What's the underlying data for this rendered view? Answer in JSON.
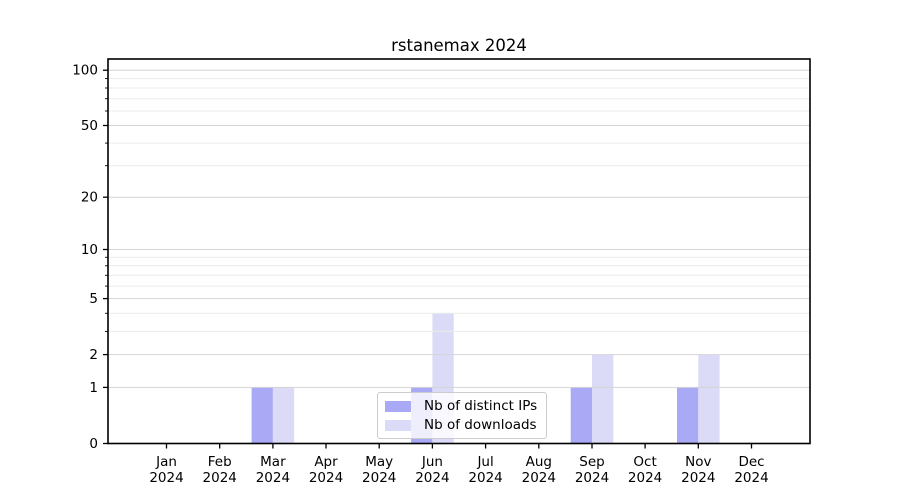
{
  "chart_data": {
    "type": "bar",
    "title": "rstanemax 2024",
    "categories": [
      "Jan",
      "Feb",
      "Mar",
      "Apr",
      "May",
      "Jun",
      "Jul",
      "Aug",
      "Sep",
      "Oct",
      "Nov",
      "Dec"
    ],
    "category_sub_label": "2024",
    "series": [
      {
        "name": "Nb of distinct IPs",
        "color": "#a9a9f5",
        "values": [
          0,
          0,
          1,
          0,
          0,
          1,
          0,
          0,
          1,
          0,
          1,
          0
        ]
      },
      {
        "name": "Nb of downloads",
        "color": "#dbdbf8",
        "values": [
          0,
          0,
          1,
          0,
          0,
          4,
          0,
          0,
          2,
          0,
          2,
          0
        ]
      }
    ],
    "xlabel": "",
    "ylabel": "",
    "y_ticks": [
      0,
      1,
      2,
      5,
      10,
      20,
      50,
      100
    ],
    "y_minor_ticks": [
      3,
      4,
      6,
      7,
      8,
      9,
      30,
      40,
      60,
      70,
      80,
      90
    ],
    "scale": "log1p",
    "ylim": [
      0,
      115
    ],
    "grid": true,
    "legend_position": "lower center",
    "colors": {
      "axis": "#000000",
      "major_grid": "#d4d4d4",
      "minor_grid": "#ebebeb",
      "text": "#000000"
    }
  }
}
